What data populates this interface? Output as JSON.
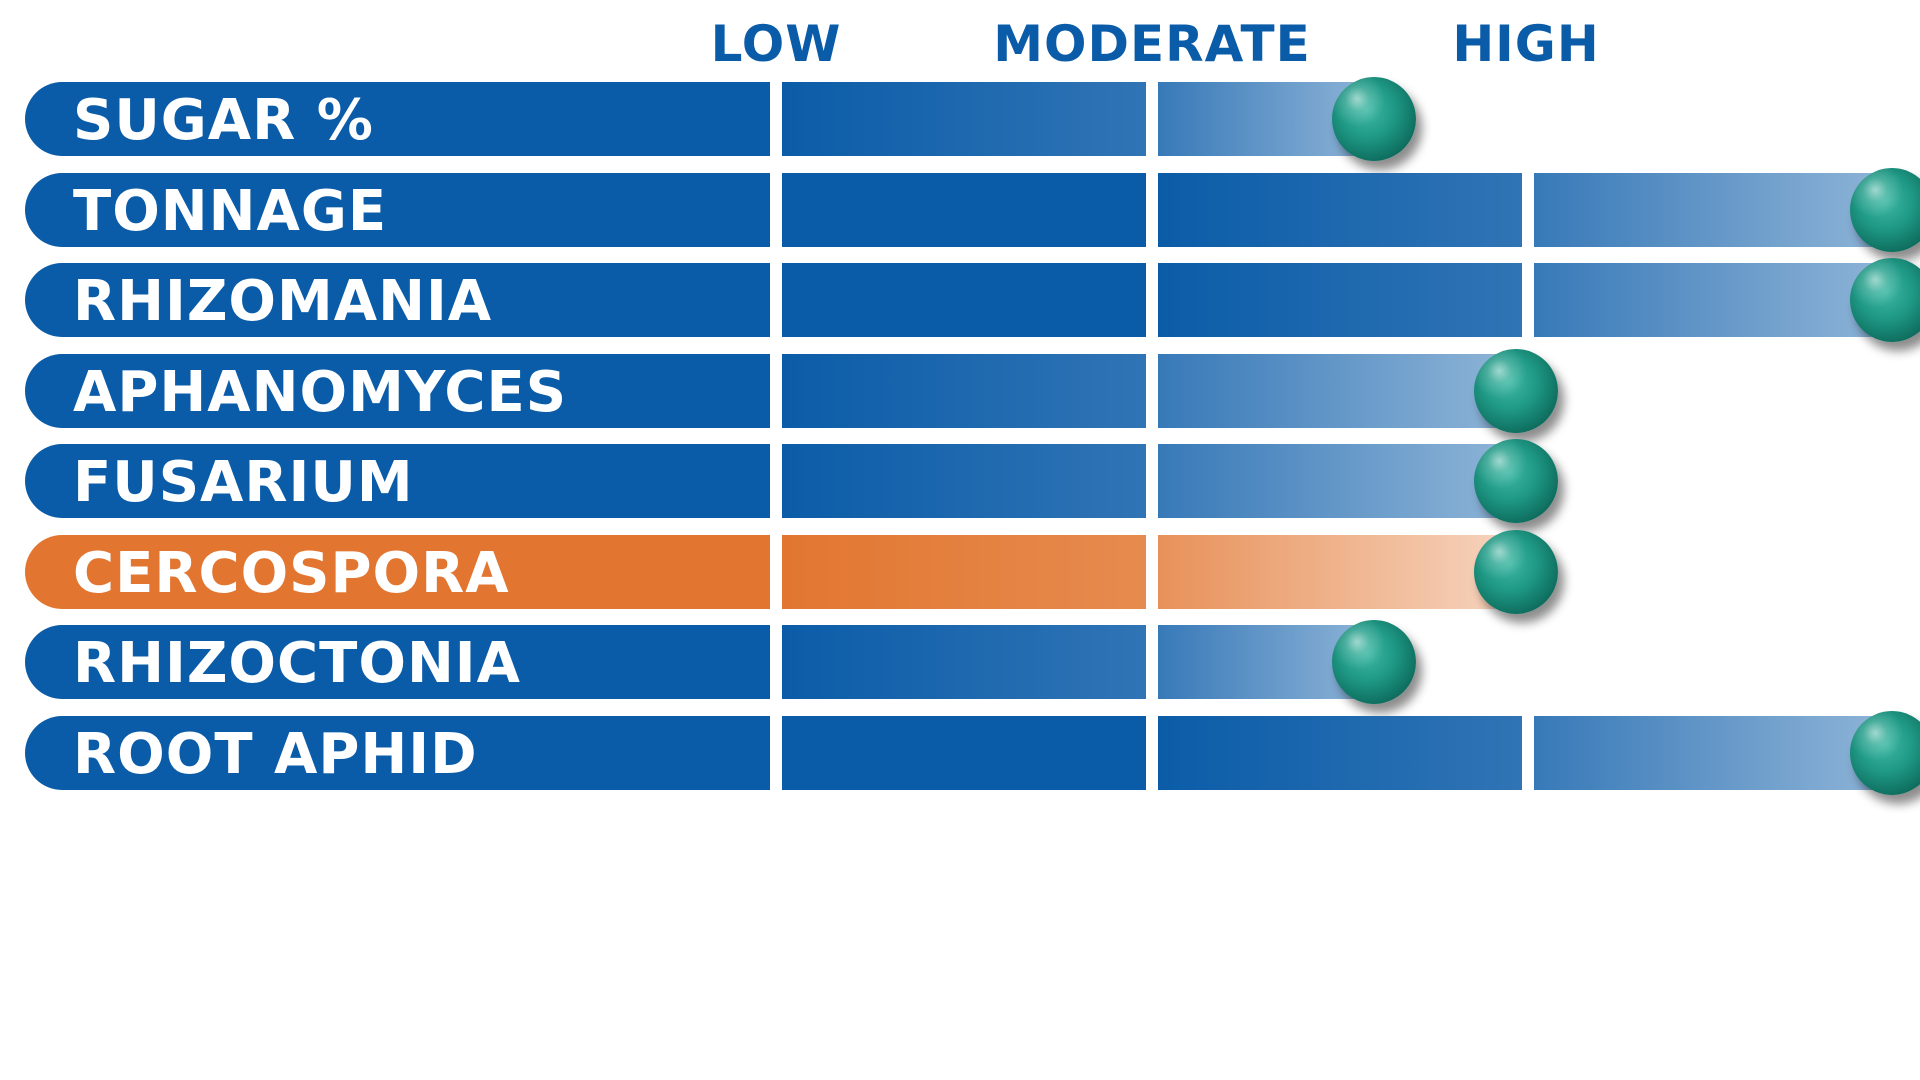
{
  "chart_data": {
    "type": "bar",
    "scale_labels": [
      "LOW",
      "MODERATE",
      "HIGH"
    ],
    "scale_max": 3,
    "rows": [
      {
        "label": "SUGAR %",
        "value": 1.5,
        "highlight": false
      },
      {
        "label": "TONNAGE",
        "value": 3.0,
        "highlight": false
      },
      {
        "label": "RHIZOMANIA",
        "value": 3.0,
        "highlight": false
      },
      {
        "label": "APHANOMYCES",
        "value": 2.0,
        "highlight": false
      },
      {
        "label": "FUSARIUM",
        "value": 2.0,
        "highlight": false
      },
      {
        "label": "CERCOSPORA",
        "value": 2.0,
        "highlight": true
      },
      {
        "label": "RHIZOCTONIA",
        "value": 1.5,
        "highlight": false
      },
      {
        "label": "ROOT APHID",
        "value": 3.0,
        "highlight": false
      }
    ],
    "colors": {
      "bar": "#0b5ca8",
      "highlight": "#e27630",
      "marker": "#1f9a86",
      "scale_text": "#0b5ca8"
    }
  }
}
